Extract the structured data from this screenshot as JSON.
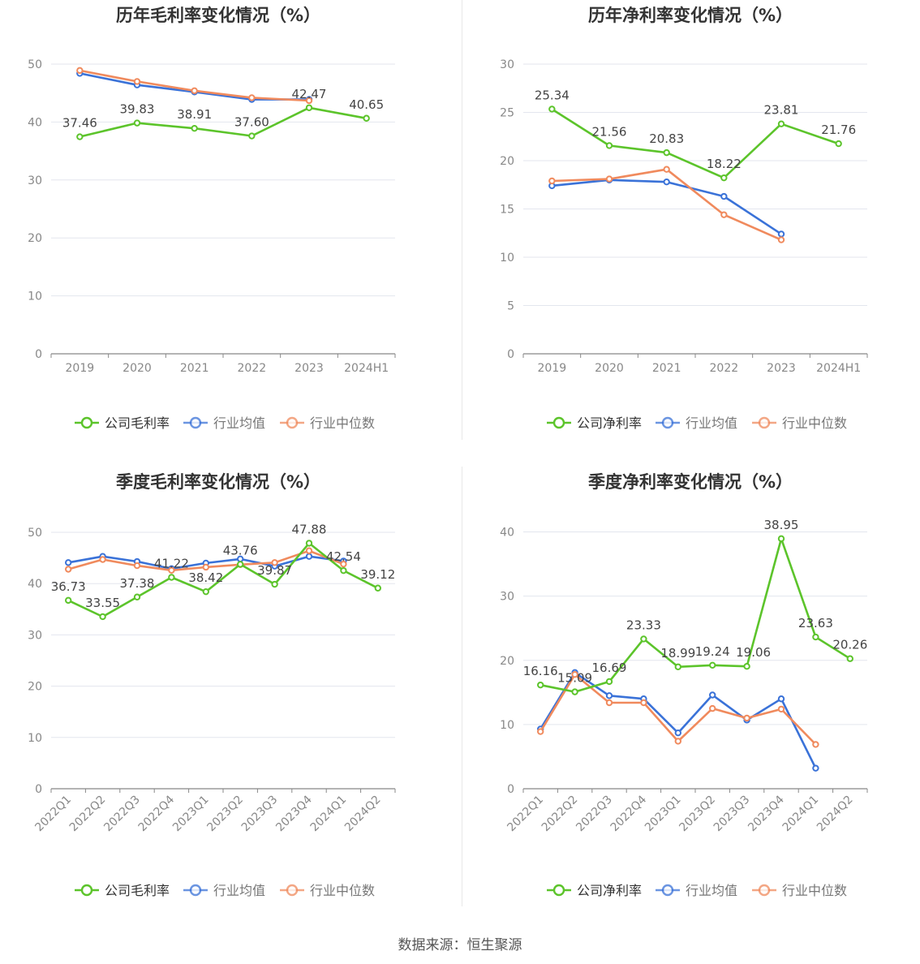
{
  "footer": {
    "source": "数据来源：恒生聚源"
  },
  "legend_labels": [
    "公司毛利率",
    "行业均值",
    "行业中位数"
  ],
  "colors": {
    "company": "#5cc42b",
    "average": "#3a72d8",
    "median": "#f08a5d"
  },
  "chart_data": [
    {
      "title": "历年毛利率变化情况（%）",
      "type": "line",
      "categories": [
        "2019",
        "2020",
        "2021",
        "2022",
        "2023",
        "2024H1"
      ],
      "ylim": [
        0,
        50
      ],
      "yticks": [
        0,
        10,
        20,
        30,
        40,
        50
      ],
      "legend": [
        "公司毛利率",
        "行业均值",
        "行业中位数"
      ],
      "series": [
        {
          "name": "公司毛利率",
          "values": [
            37.46,
            39.83,
            38.91,
            37.6,
            42.47,
            40.65
          ],
          "labels": [
            "37.46",
            "39.83",
            "38.91",
            "37.60",
            "42.47",
            "40.65"
          ]
        },
        {
          "name": "行业均值",
          "values": [
            48.4,
            46.4,
            45.2,
            43.9,
            43.9,
            null
          ]
        },
        {
          "name": "行业中位数",
          "values": [
            48.9,
            47.0,
            45.4,
            44.2,
            43.7,
            null
          ]
        }
      ]
    },
    {
      "title": "历年净利率变化情况（%）",
      "type": "line",
      "categories": [
        "2019",
        "2020",
        "2021",
        "2022",
        "2023",
        "2024H1"
      ],
      "ylim": [
        0,
        30
      ],
      "yticks": [
        0,
        5,
        10,
        15,
        20,
        25,
        30
      ],
      "legend": [
        "公司净利率",
        "行业均值",
        "行业中位数"
      ],
      "series": [
        {
          "name": "公司净利率",
          "values": [
            25.34,
            21.56,
            20.83,
            18.22,
            23.81,
            21.76
          ],
          "labels": [
            "25.34",
            "21.56",
            "20.83",
            "18.22",
            "23.81",
            "21.76"
          ]
        },
        {
          "name": "行业均值",
          "values": [
            17.4,
            18.0,
            17.8,
            16.3,
            12.4,
            null
          ]
        },
        {
          "name": "行业中位数",
          "values": [
            17.9,
            18.1,
            19.1,
            14.4,
            11.8,
            null
          ]
        }
      ]
    },
    {
      "title": "季度毛利率变化情况（%）",
      "type": "line",
      "categories": [
        "2022Q1",
        "2022Q2",
        "2022Q3",
        "2022Q4",
        "2023Q1",
        "2023Q2",
        "2023Q3",
        "2023Q4",
        "2024Q1",
        "2024Q2"
      ],
      "ylim": [
        0,
        50
      ],
      "yticks": [
        0,
        10,
        20,
        30,
        40,
        50
      ],
      "legend": [
        "公司毛利率",
        "行业均值",
        "行业中位数"
      ],
      "series": [
        {
          "name": "公司毛利率",
          "values": [
            36.73,
            33.55,
            37.38,
            41.22,
            38.42,
            43.76,
            39.87,
            47.88,
            42.54,
            39.12
          ],
          "labels": [
            "36.73",
            "33.55",
            "37.38",
            "41.22",
            "38.42",
            "43.76",
            "39.87",
            "47.88",
            "42.54",
            "39.12"
          ]
        },
        {
          "name": "行业均值",
          "values": [
            44.1,
            45.3,
            44.3,
            42.9,
            44.0,
            44.8,
            43.4,
            45.3,
            44.4,
            null
          ]
        },
        {
          "name": "行业中位数",
          "values": [
            42.8,
            44.7,
            43.5,
            42.6,
            43.2,
            43.7,
            44.1,
            46.4,
            43.8,
            null
          ]
        }
      ]
    },
    {
      "title": "季度净利率变化情况（%）",
      "type": "line",
      "categories": [
        "2022Q1",
        "2022Q2",
        "2022Q3",
        "2022Q4",
        "2023Q1",
        "2023Q2",
        "2023Q3",
        "2023Q4",
        "2024Q1",
        "2024Q2"
      ],
      "ylim": [
        0,
        45
      ],
      "yticks": [
        0,
        10,
        20,
        30,
        40
      ],
      "legend": [
        "公司净利率",
        "行业均值",
        "行业中位数"
      ],
      "series": [
        {
          "name": "公司净利率",
          "values": [
            16.16,
            15.09,
            16.69,
            23.33,
            18.99,
            19.24,
            19.06,
            38.95,
            23.63,
            20.26
          ],
          "labels": [
            "16.16",
            "15.09",
            "16.69",
            "23.33",
            "18.99",
            "19.24",
            "19.06",
            "38.95",
            "23.63",
            "20.26"
          ]
        },
        {
          "name": "行业均值",
          "values": [
            9.3,
            18.1,
            14.5,
            14.0,
            8.7,
            14.6,
            10.7,
            14.0,
            3.2,
            null
          ]
        },
        {
          "name": "行业中位数",
          "values": [
            8.9,
            17.8,
            13.4,
            13.4,
            7.4,
            12.5,
            11.0,
            12.4,
            6.9,
            null
          ]
        }
      ]
    }
  ]
}
